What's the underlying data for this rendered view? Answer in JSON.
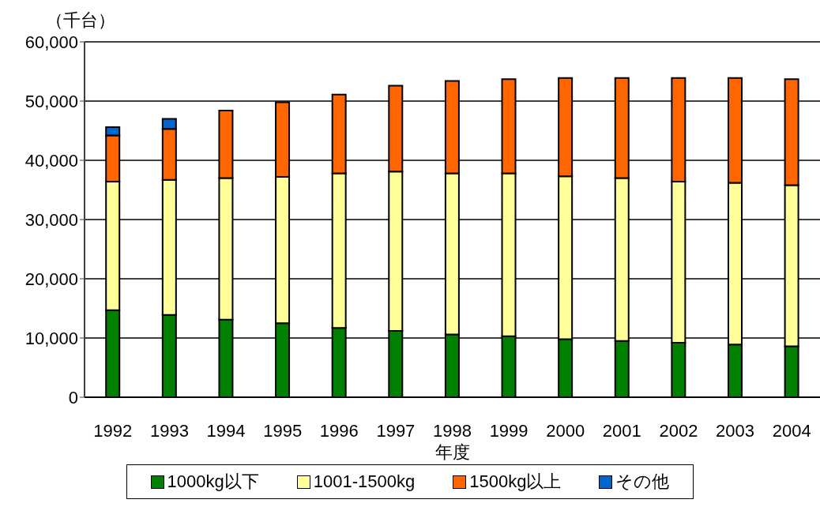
{
  "chart_data": {
    "type": "bar",
    "stacked": true,
    "xlabel": "年度",
    "ylabel": "（千台）",
    "categories": [
      "1992",
      "1993",
      "1994",
      "1995",
      "1996",
      "1997",
      "1998",
      "1999",
      "2000",
      "2001",
      "2002",
      "2003",
      "2004"
    ],
    "series": [
      {
        "name": "1000kg以下",
        "color": "#008000",
        "values": [
          14700,
          13900,
          13100,
          12500,
          11700,
          11200,
          10600,
          10300,
          9800,
          9500,
          9200,
          8900,
          8600
        ]
      },
      {
        "name": "1001-1500kg",
        "color": "#ffff99",
        "values": [
          21700,
          22800,
          23900,
          24700,
          26100,
          26900,
          27200,
          27500,
          27500,
          27500,
          27200,
          27300,
          27200
        ]
      },
      {
        "name": "1500kg以上",
        "color": "#ff6600",
        "values": [
          7800,
          8600,
          11400,
          12600,
          13300,
          14500,
          15600,
          15900,
          16600,
          16900,
          17500,
          17700,
          17900
        ]
      },
      {
        "name": "その他",
        "color": "#0066cc",
        "values": [
          1400,
          1700,
          null,
          null,
          null,
          null,
          null,
          null,
          null,
          null,
          null,
          null,
          null
        ]
      }
    ],
    "ylim": [
      0,
      60000
    ],
    "yticks": [
      {
        "value": 0,
        "label": "0"
      },
      {
        "value": 10000,
        "label": "10,000"
      },
      {
        "value": 20000,
        "label": "20,000"
      },
      {
        "value": 30000,
        "label": "30,000"
      },
      {
        "value": 40000,
        "label": "40,000"
      },
      {
        "value": 50000,
        "label": "50,000"
      },
      {
        "value": 60000,
        "label": "60,000"
      }
    ],
    "grid": "y",
    "legend": "bottom"
  }
}
